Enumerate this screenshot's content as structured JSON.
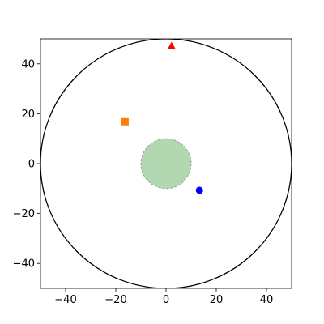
{
  "chart_data": {
    "type": "scatter",
    "title": "",
    "xlabel": "",
    "ylabel": "",
    "xlim": [
      -50,
      50
    ],
    "ylim": [
      -50,
      50
    ],
    "aspect": "equal",
    "grid": false,
    "legend": "none",
    "x_ticks": [
      -40,
      -20,
      0,
      20,
      40
    ],
    "y_ticks": [
      -40,
      -20,
      0,
      20,
      40
    ],
    "x_tick_labels": [
      "−40",
      "−20",
      "0",
      "20",
      "40"
    ],
    "y_tick_labels": [
      "−40",
      "−20",
      "0",
      "20",
      "40"
    ],
    "shapes": [
      {
        "kind": "circle",
        "center": [
          0,
          0
        ],
        "radius": 50,
        "fill": "none",
        "edge_color": "#000000",
        "edge_style": "solid"
      },
      {
        "kind": "circle",
        "center": [
          0,
          0
        ],
        "radius": 10,
        "fill": "#b2d8b2",
        "edge_color": "#999999",
        "edge_style": "dashed"
      }
    ],
    "points": [
      {
        "x": 2.2,
        "y": 47.2,
        "marker": "triangle",
        "color": "#ff0000"
      },
      {
        "x": -16.3,
        "y": 16.8,
        "marker": "square",
        "color": "#ff7f0e"
      },
      {
        "x": 13.3,
        "y": -10.7,
        "marker": "circle",
        "color": "#0000ff"
      }
    ]
  }
}
